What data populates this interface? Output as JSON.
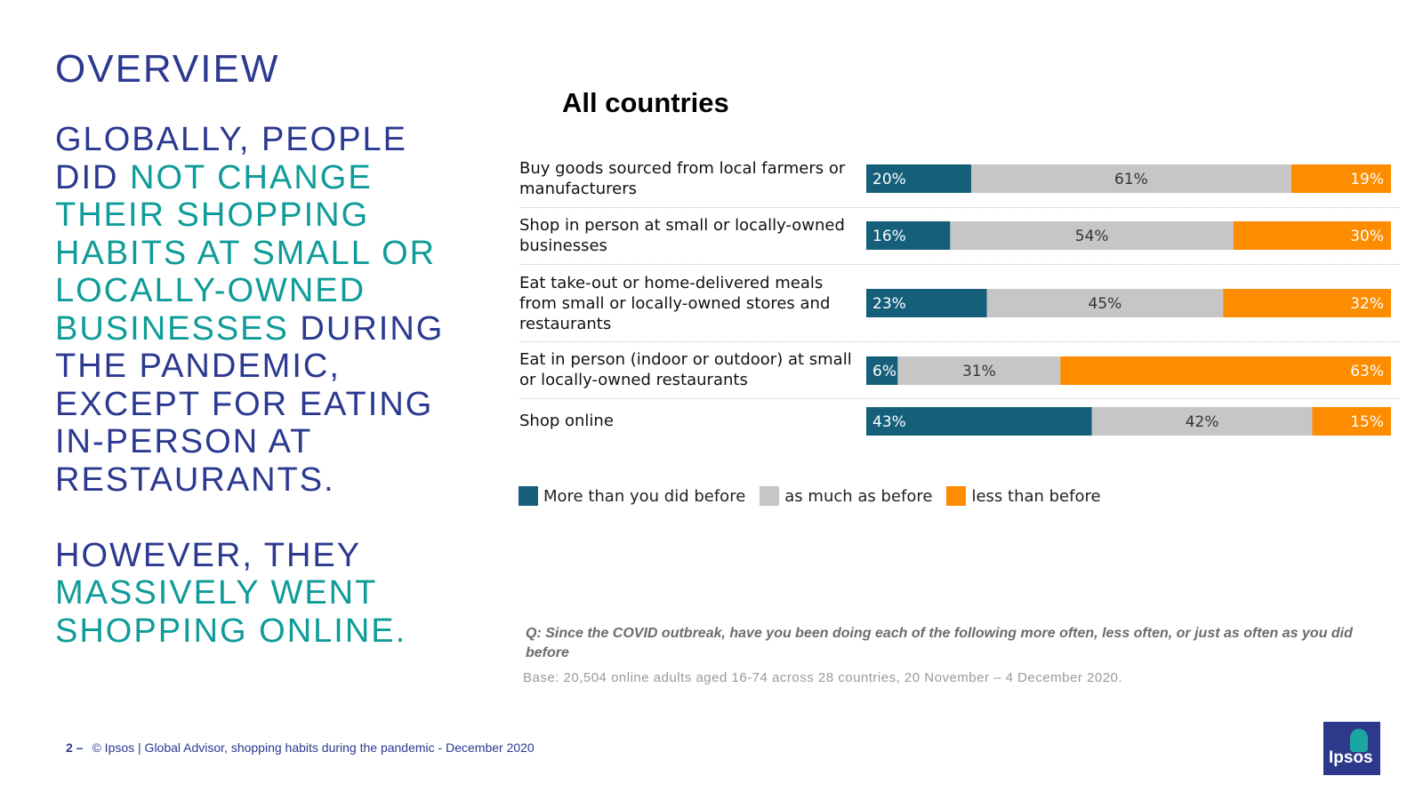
{
  "overview_title": "OVERVIEW",
  "headline": [
    {
      "text": "GLOBALLY, PEOPLE DID ",
      "color": "navy"
    },
    {
      "text": "NOT CHANGE THEIR SHOPPING HABITS AT SMALL OR LOCALLY-OWNED BUSINESSES",
      "color": "teal"
    },
    {
      "text": " DURING THE PANDEMIC, EXCEPT FOR EATING IN-PERSON AT RESTAURANTS.",
      "color": "navy"
    },
    {
      "text": "\n\nHOWEVER, THEY ",
      "color": "navy"
    },
    {
      "text": "MASSIVELY WENT SHOPPING ONLINE.",
      "color": "teal"
    }
  ],
  "chart_data": {
    "type": "bar",
    "stacked": true,
    "orientation": "horizontal",
    "title": "All countries",
    "categories": [
      "Buy goods sourced from local farmers or manufacturers",
      "Shop in person at small or locally-owned businesses",
      "Eat take-out or home-delivered meals from small or locally-owned stores and restaurants",
      "Eat in person (indoor or outdoor) at small or locally-owned restaurants",
      "Shop online"
    ],
    "series": [
      {
        "name": "More than you did before",
        "color": "#155f7b",
        "values": [
          20,
          16,
          23,
          6,
          43
        ]
      },
      {
        "name": "as much as before",
        "color": "#c6c6c6",
        "values": [
          61,
          54,
          45,
          31,
          42
        ]
      },
      {
        "name": "less than before",
        "color": "#fe8c00",
        "values": [
          19,
          30,
          32,
          63,
          15
        ]
      }
    ],
    "value_suffix": "%",
    "legend": "bottom-left"
  },
  "question": "Q: Since the COVID outbreak, have you been doing each of the following more often, less often, or just as often as you did before",
  "base": "Base: 20,504 online adults aged 16-74 across 28 countries,  20 November – 4 December 2020.",
  "footer": {
    "page_number": "2 –",
    "text": "© Ipsos |  Global Advisor, shopping habits during the pandemic - December 2020"
  },
  "logo": {
    "word": "Ipsos",
    "color": "#2d3a8c",
    "accent": "#1aa7a1"
  }
}
